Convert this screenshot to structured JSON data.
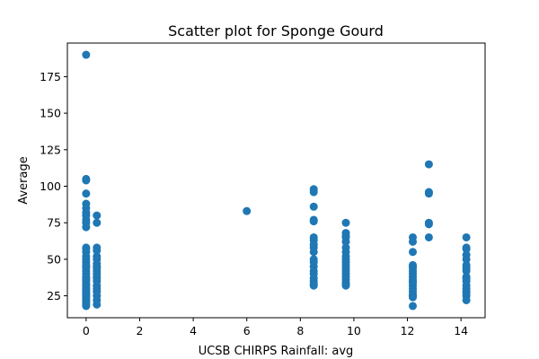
{
  "chart_data": {
    "type": "scatter",
    "title": "Scatter plot for Sponge Gourd",
    "xlabel": "UCSB CHIRPS Rainfall: avg",
    "ylabel": "Average",
    "xlim": [
      -0.7,
      14.9
    ],
    "ylim": [
      10,
      198
    ],
    "xticks": [
      0,
      2,
      4,
      6,
      8,
      10,
      12,
      14
    ],
    "xtick_labels": [
      "0",
      "2",
      "4",
      "6",
      "8",
      "10",
      "12",
      "14"
    ],
    "yticks": [
      25,
      50,
      75,
      100,
      125,
      150,
      175
    ],
    "ytick_labels": [
      "25",
      "50",
      "75",
      "100",
      "125",
      "150",
      "175"
    ],
    "grid": false,
    "marker_color": "#1f77b4",
    "series": [
      {
        "x": [
          0,
          0,
          0,
          0,
          0,
          0,
          0,
          0,
          0,
          0,
          0,
          0,
          0,
          0,
          0,
          0,
          0,
          0,
          0,
          0,
          0,
          0,
          0,
          0,
          0,
          0,
          0,
          0,
          0,
          0,
          0,
          0,
          0,
          0,
          0,
          0,
          0,
          0,
          0,
          0,
          0,
          0,
          0.4,
          0.4,
          0.4,
          0.4,
          0.4,
          0.4,
          0.4,
          0.4,
          0.4,
          0.4,
          0.4,
          0.4,
          0.4,
          0.4,
          0.4,
          0.4,
          0.4,
          0.4,
          0.4,
          0.4,
          6,
          8.5,
          8.5,
          8.5,
          8.5,
          8.5,
          8.5,
          8.5,
          8.5,
          8.5,
          8.5,
          8.5,
          8.5,
          8.5,
          8.5,
          8.5,
          8.5,
          8.5,
          8.5,
          8.5,
          9.7,
          9.7,
          9.7,
          9.7,
          9.7,
          9.7,
          9.7,
          9.7,
          9.7,
          9.7,
          9.7,
          9.7,
          9.7,
          9.7,
          9.7,
          9.7,
          9.7,
          9.7,
          9.7,
          12.2,
          12.2,
          12.2,
          12.2,
          12.2,
          12.2,
          12.2,
          12.2,
          12.2,
          12.2,
          12.2,
          12.2,
          12.2,
          12.2,
          12.2,
          12.2,
          12.2,
          12.2,
          12.2,
          12.8,
          12.8,
          12.8,
          12.8,
          12.8,
          12.8,
          14.2,
          14.2,
          14.2,
          14.2,
          14.2,
          14.2,
          14.2,
          14.2,
          14.2,
          14.2,
          14.2,
          14.2,
          14.2,
          14.2,
          14.2,
          14.2,
          14.2
        ],
        "y": [
          190,
          105,
          104,
          95,
          88,
          85,
          82,
          80,
          77,
          75,
          72,
          58,
          57,
          55,
          52,
          50,
          48,
          46,
          44,
          42,
          40,
          38,
          36,
          35,
          33,
          32,
          30,
          29,
          28,
          26,
          25,
          24,
          23,
          22,
          21,
          20,
          19,
          18,
          45,
          37,
          31,
          27,
          80,
          75,
          58,
          56,
          52,
          50,
          47,
          45,
          42,
          40,
          37,
          35,
          32,
          28,
          25,
          22,
          19,
          30,
          38,
          44,
          83,
          98,
          96,
          86,
          77,
          76,
          65,
          63,
          58,
          55,
          50,
          48,
          45,
          42,
          37,
          35,
          33,
          32,
          40,
          60,
          75,
          68,
          66,
          65,
          62,
          58,
          55,
          52,
          50,
          48,
          46,
          44,
          42,
          40,
          38,
          36,
          34,
          33,
          32,
          65,
          62,
          55,
          46,
          45,
          44,
          42,
          40,
          38,
          36,
          34,
          32,
          30,
          28,
          26,
          25,
          24,
          18,
          35,
          115,
          96,
          95,
          75,
          74,
          65,
          65,
          58,
          57,
          53,
          50,
          46,
          44,
          42,
          38,
          37,
          35,
          32,
          30,
          28,
          27,
          25,
          22
        ]
      }
    ]
  }
}
